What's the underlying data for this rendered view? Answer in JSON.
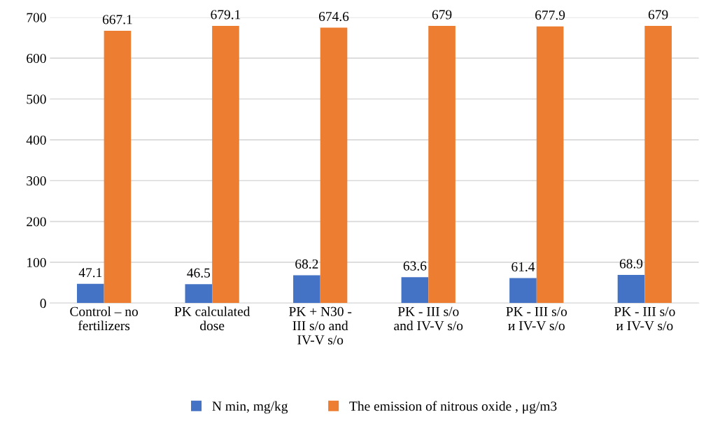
{
  "chart_data": {
    "type": "bar",
    "categories": [
      "Control – no fertilizers",
      "PK calculated dose",
      "PK + N30 - III s/o and IV-V s/o",
      "PK - III s/o and IV-V s/o",
      "PK - III s/o и IV-V s/o",
      "PK - III s/o и IV-V s/o"
    ],
    "series": [
      {
        "name": "N min, mg/kg",
        "color": "#4472c4",
        "values": [
          47.1,
          46.5,
          68.2,
          63.6,
          61.4,
          68.9
        ]
      },
      {
        "name": "The emission of nitrous oxide , μg/m3",
        "color": "#ed7d31",
        "values": [
          667.1,
          679.1,
          674.6,
          679,
          677.9,
          679
        ]
      }
    ],
    "ylim": [
      0,
      700
    ],
    "yticks": [
      0,
      100,
      200,
      300,
      400,
      500,
      600,
      700
    ],
    "grid": "y",
    "legend": "bottom",
    "data_labels": true
  }
}
